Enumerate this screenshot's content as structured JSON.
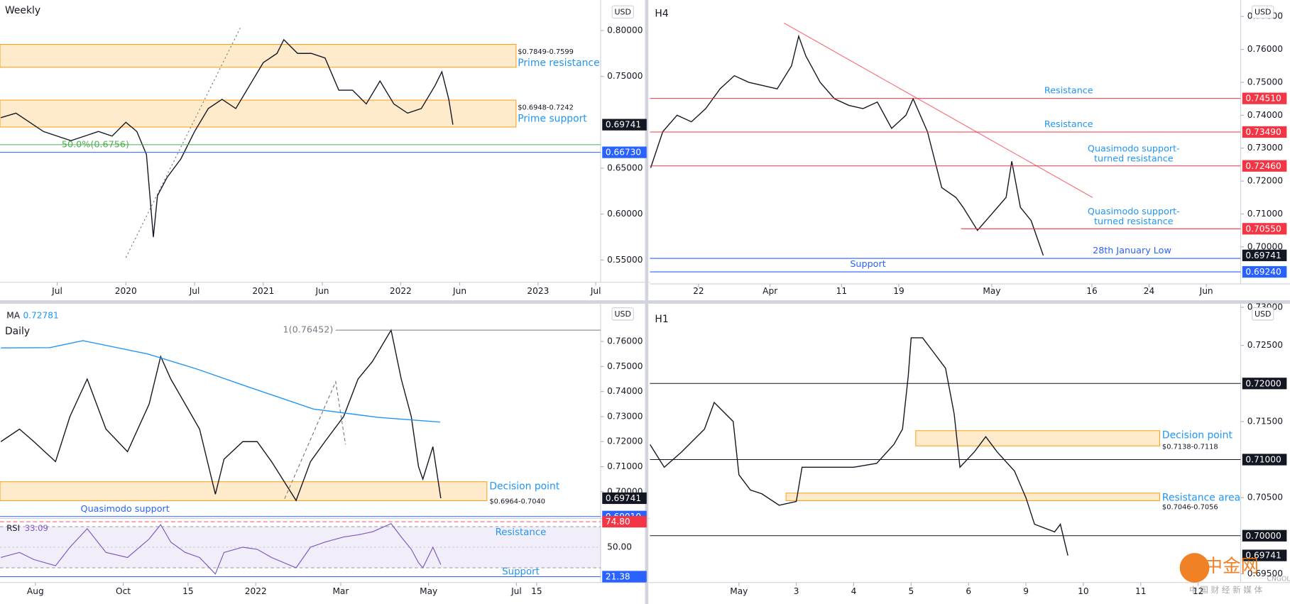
{
  "chart_data": [
    {
      "type": "line",
      "title": "Weekly",
      "currency": "USD",
      "xlim": [
        2019.084,
        2023.455
      ],
      "xticks": [
        {
          "value": 2019.5,
          "label": "Jul"
        },
        2020,
        {
          "value": 2020.5,
          "label": "Jul"
        },
        2021,
        {
          "value": 2021.43,
          "label": "Jun"
        },
        2022,
        {
          "value": 2022.43,
          "label": "Jun"
        },
        2023,
        {
          "value": 2023.42,
          "label": "Jul"
        }
      ],
      "ylim": [
        0.5258,
        0.8287
      ],
      "yticks": [
        {
          "value": 0.55,
          "label": "0.55000"
        },
        {
          "value": 0.6,
          "label": "0.60000"
        },
        {
          "value": 0.65,
          "label": "0.65000"
        },
        {
          "value": 0.75,
          "label": "0.75000"
        },
        {
          "value": 0.8,
          "label": "0.80000"
        }
      ],
      "series": [
        {
          "color": "#131722",
          "x": [
            2019.09,
            2019.2,
            2019.3,
            2019.4,
            2019.5,
            2019.6,
            2019.7,
            2019.8,
            2019.9,
            2020.0,
            2020.08,
            2020.15,
            2020.2,
            2020.23,
            2020.3,
            2020.4,
            2020.5,
            2020.6,
            2020.7,
            2020.8,
            2020.9,
            2021.0,
            2021.1,
            2021.15,
            2021.25,
            2021.35,
            2021.45,
            2021.55,
            2021.65,
            2021.75,
            2021.85,
            2021.95,
            2022.05,
            2022.15,
            2022.25,
            2022.3,
            2022.35,
            2022.38
          ],
          "values": [
            0.705,
            0.71,
            0.7,
            0.69,
            0.685,
            0.68,
            0.685,
            0.69,
            0.685,
            0.7,
            0.69,
            0.665,
            0.575,
            0.62,
            0.64,
            0.66,
            0.69,
            0.715,
            0.725,
            0.715,
            0.74,
            0.765,
            0.775,
            0.79,
            0.775,
            0.775,
            0.77,
            0.735,
            0.735,
            0.72,
            0.745,
            0.72,
            0.71,
            0.715,
            0.74,
            0.755,
            0.725,
            0.6974
          ]
        }
      ],
      "zones": [
        {
          "low": 0.7599,
          "high": 0.7849,
          "x_end": 2022.84,
          "range_label": "$0.7849-0.7599",
          "label": "Prime resistance"
        },
        {
          "low": 0.6948,
          "high": 0.7242,
          "x_end": 2022.84,
          "range_label": "$0.6948-0.7242",
          "label": "Prime support"
        }
      ],
      "levels": [
        {
          "value": 0.6756,
          "color": "#4caf50",
          "text": "50.0%(0.6756)"
        },
        {
          "value": 0.6673,
          "color": "#2962ff",
          "value_label": "0.66730"
        }
      ],
      "last_price": {
        "value": 0.69741,
        "value_label": "0.69741"
      }
    },
    {
      "type": "line",
      "title": "H4",
      "currency": "USD",
      "xlim": [
        74.2,
        156.8
      ],
      "xticks": [
        {
          "value": 81,
          "label": "22"
        },
        {
          "value": 91,
          "label": "Apr"
        },
        {
          "value": 101,
          "label": "11"
        },
        {
          "value": 109,
          "label": "19"
        },
        {
          "value": 122,
          "label": "May"
        },
        {
          "value": 136,
          "label": "16"
        },
        {
          "value": 144,
          "label": "24"
        },
        {
          "value": 152,
          "label": "Jun"
        }
      ],
      "ylim": [
        0.68875,
        0.77375
      ],
      "yticks": [
        {
          "value": 0.7,
          "label": "0.70000"
        },
        {
          "value": 0.71,
          "label": "0.71000"
        },
        {
          "value": 0.72,
          "label": "0.72000"
        },
        {
          "value": 0.73,
          "label": "0.73000"
        },
        {
          "value": 0.74,
          "label": "0.74000"
        },
        {
          "value": 0.75,
          "label": "0.75000"
        },
        {
          "value": 0.76,
          "label": "0.76000"
        },
        {
          "value": 0.77,
          "label": "0.77000"
        }
      ],
      "series": [
        {
          "color": "#131722",
          "x": [
            74.3,
            76,
            78,
            80,
            82,
            84,
            86,
            88,
            90,
            92,
            94,
            95,
            96,
            98,
            100,
            102,
            104,
            106,
            108,
            110,
            111,
            113,
            115,
            117,
            118,
            120,
            122,
            124,
            124.8,
            126,
            127.5,
            129.2
          ],
          "values": [
            0.724,
            0.735,
            0.74,
            0.738,
            0.742,
            0.748,
            0.752,
            0.75,
            0.749,
            0.748,
            0.755,
            0.764,
            0.758,
            0.75,
            0.745,
            0.743,
            0.742,
            0.744,
            0.736,
            0.74,
            0.745,
            0.735,
            0.718,
            0.715,
            0.712,
            0.705,
            0.71,
            0.715,
            0.726,
            0.712,
            0.708,
            0.6974
          ]
        }
      ],
      "zones": [],
      "levels": [
        {
          "value": 0.7451,
          "color": "#f23645",
          "text": "Resistance",
          "value_label": "0.74510"
        },
        {
          "value": 0.7349,
          "color": "#f23645",
          "text": "Resistance",
          "value_label": "0.73490"
        },
        {
          "value": 0.7246,
          "color": "#f23645",
          "text": "Quasimodo support-\nturned resistance",
          "value_label": "0.72460"
        },
        {
          "value": 0.7055,
          "color": "#f23645",
          "text": "Quasimodo support-\nturned resistance",
          "value_label": "0.70550",
          "x_start": 117.7
        },
        {
          "value": 0.6965,
          "color": "#2962ff",
          "text": "28th January Low"
        },
        {
          "value": 0.6924,
          "color": "#2962ff",
          "text": "Support",
          "value_label": "0.69240"
        }
      ],
      "last_price": {
        "value": 0.69741,
        "value_label": "0.69741"
      }
    },
    {
      "type": "line",
      "title": "Daily",
      "currency": "USD",
      "indicator": {
        "name": "MA",
        "value": 0.72781
      },
      "xlim": [
        6.45,
        423.4
      ],
      "xticks": [
        {
          "value": 31,
          "label": "Aug"
        },
        {
          "value": 92,
          "label": "Oct"
        },
        {
          "value": 137,
          "label": "15"
        },
        {
          "value": 184,
          "label": "2022"
        },
        {
          "value": 243,
          "label": "Mar"
        },
        {
          "value": 304,
          "label": "May"
        },
        {
          "value": 365,
          "label": "Jul"
        },
        {
          "value": 379,
          "label": "15"
        }
      ],
      "ylim": [
        0.69,
        0.7741
      ],
      "yticks": [
        {
          "value": 0.7,
          "label": "0.70000"
        },
        {
          "value": 0.71,
          "label": "0.71000"
        },
        {
          "value": 0.72,
          "label": "0.72000"
        },
        {
          "value": 0.73,
          "label": "0.73000"
        },
        {
          "value": 0.74,
          "label": "0.74000"
        },
        {
          "value": 0.75,
          "label": "0.75000"
        },
        {
          "value": 0.76,
          "label": "0.76000"
        }
      ],
      "series": [
        {
          "color": "#131722",
          "x": [
            7,
            20,
            30,
            45,
            55,
            67,
            80,
            95,
            110,
            118,
            125,
            135,
            145,
            156,
            162,
            175,
            185,
            195,
            212,
            222,
            232,
            245,
            255,
            265,
            278,
            285,
            292,
            297,
            300,
            307,
            312.5
          ],
          "values": [
            0.72,
            0.725,
            0.72,
            0.712,
            0.73,
            0.745,
            0.725,
            0.716,
            0.735,
            0.754,
            0.745,
            0.735,
            0.725,
            0.699,
            0.713,
            0.72,
            0.72,
            0.712,
            0.6965,
            0.712,
            0.72,
            0.73,
            0.745,
            0.752,
            0.7645,
            0.745,
            0.73,
            0.71,
            0.705,
            0.718,
            0.6974
          ]
        },
        {
          "color": "#2196f3",
          "x": [
            7,
            41,
            64,
            109,
            143,
            178,
            224,
            269,
            312
          ],
          "values": [
            0.7574,
            0.7575,
            0.7603,
            0.755,
            0.749,
            0.742,
            0.733,
            0.7297,
            0.7278
          ]
        }
      ],
      "zones": [
        {
          "low": 0.6964,
          "high": 0.704,
          "x_end": 344.5,
          "label": "Decision point",
          "range_label": "$0.6964-0.7040"
        }
      ],
      "levels": [
        {
          "value": 0.76452,
          "color": "#787b86",
          "text": "1(0.76452)",
          "x_start": 239.5
        },
        {
          "value": 0.6901,
          "color": "#2962ff",
          "text": "Quasimodo support",
          "value_label": "0.69010"
        }
      ],
      "last_price": {
        "value": 0.69741,
        "value_label": "0.69741"
      },
      "rsi": {
        "name": "RSI",
        "value": 33.09,
        "ylim": [
          19.6,
          76.4
        ],
        "band": [
          30,
          70
        ],
        "yticks": [
          {
            "value": 50,
            "label": "50.00"
          }
        ],
        "x": [
          7,
          20,
          30,
          45,
          55,
          67,
          80,
          95,
          110,
          118,
          125,
          135,
          145,
          156,
          162,
          175,
          185,
          195,
          212,
          222,
          232,
          245,
          255,
          265,
          278,
          285,
          292,
          297,
          300,
          307,
          312.5
        ],
        "values": [
          40,
          45,
          38,
          32,
          50,
          68,
          45,
          40,
          58,
          72,
          55,
          45,
          40,
          24,
          45,
          50,
          48,
          40,
          30,
          50,
          55,
          60,
          62,
          65,
          73,
          60,
          48,
          35,
          30,
          50,
          33.09
        ],
        "levels": [
          {
            "value": 74.8,
            "color": "#f23645",
            "text": "Resistance",
            "value_label": "74.80"
          },
          {
            "value": 21.38,
            "color": "#2962ff",
            "text": "Support"
          }
        ]
      }
    },
    {
      "type": "line",
      "title": "H1",
      "currency": "USD",
      "xlim": [
        -1.55,
        8.74
      ],
      "xticks": [
        {
          "value": 0,
          "label": "May"
        },
        {
          "value": 1,
          "label": "3"
        },
        {
          "value": 2,
          "label": "4"
        },
        {
          "value": 3,
          "label": "5"
        },
        {
          "value": 4,
          "label": "6"
        },
        {
          "value": 5,
          "label": "9"
        },
        {
          "value": 6,
          "label": "10"
        },
        {
          "value": 7,
          "label": "11"
        },
        {
          "value": 8,
          "label": "12"
        }
      ],
      "ylim": [
        0.69384,
        0.73016
      ],
      "yticks": [
        {
          "value": 0.695,
          "label": "0.69500"
        },
        {
          "value": 0.705,
          "label": "0.70500"
        },
        {
          "value": 0.715,
          "label": "0.71500"
        },
        {
          "value": 0.725,
          "label": "0.72500"
        },
        {
          "value": 0.73,
          "label": "0.73000"
        }
      ],
      "series": [
        {
          "color": "#131722",
          "x": [
            -1.55,
            -1.3,
            -1.0,
            -0.6,
            -0.43,
            -0.1,
            0.0,
            0.2,
            0.4,
            0.7,
            1.0,
            1.1,
            1.5,
            2.0,
            2.4,
            2.7,
            2.85,
            2.95,
            3.0,
            3.2,
            3.4,
            3.6,
            3.75,
            3.85,
            4.1,
            4.3,
            4.5,
            4.8,
            5.0,
            5.15,
            5.5,
            5.6,
            5.73
          ],
          "values": [
            0.712,
            0.709,
            0.711,
            0.714,
            0.7175,
            0.715,
            0.708,
            0.706,
            0.7055,
            0.704,
            0.7045,
            0.709,
            0.709,
            0.709,
            0.7095,
            0.712,
            0.714,
            0.721,
            0.726,
            0.726,
            0.724,
            0.722,
            0.716,
            0.709,
            0.711,
            0.713,
            0.711,
            0.7085,
            0.705,
            0.7015,
            0.7005,
            0.7015,
            0.6974
          ]
        }
      ],
      "zones": [
        {
          "low": 0.7118,
          "high": 0.7138,
          "x_start": 3.08,
          "x_end": 7.33,
          "label": "Decision point",
          "range_label": "$0.7138-0.7118"
        },
        {
          "low": 0.7046,
          "high": 0.7056,
          "x_start": 0.82,
          "x_end": 7.33,
          "label": "Resistance area",
          "range_label": "$0.7046-0.7056"
        }
      ],
      "levels": [
        {
          "value": 0.72,
          "color": "#131722",
          "value_label": "0.72000"
        },
        {
          "value": 0.71,
          "color": "#131722",
          "value_label": "0.71000"
        },
        {
          "value": 0.7,
          "color": "#131722",
          "value_label": "0.70000"
        }
      ],
      "last_price": {
        "value": 0.69741,
        "value_label": "0.69741"
      }
    }
  ],
  "watermark": {
    "name": "中金网",
    "url": "CNGOLD.COM",
    "tagline": "中 国 财 经 新 媒 体"
  }
}
